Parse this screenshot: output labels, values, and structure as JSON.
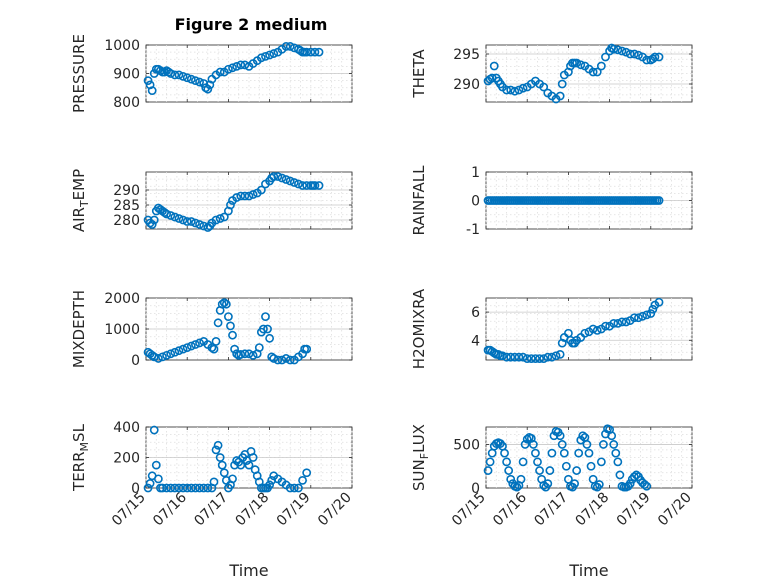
{
  "figure": {
    "title": "Figure 2 medium"
  },
  "colors": {
    "marker": "#0072BD",
    "axes": "#262626"
  },
  "chart_data": [
    {
      "id": "pressure",
      "type": "scatter",
      "title": "Figure 2 medium",
      "ylabel": "PRESSURE",
      "ylabel_sub": null,
      "xlabel": "",
      "xlim": [
        0,
        5
      ],
      "ylim": [
        800,
        1000
      ],
      "yticks": [
        800,
        900,
        1000
      ],
      "yticklabels": [
        "800",
        "900",
        "1000"
      ],
      "xticks": [
        0,
        1,
        2,
        3,
        4,
        5
      ],
      "xticklabels": [],
      "x": [
        0.05,
        0.1,
        0.15,
        0.2,
        0.25,
        0.3,
        0.35,
        0.4,
        0.45,
        0.5,
        0.55,
        0.6,
        0.7,
        0.8,
        0.9,
        1.0,
        1.1,
        1.2,
        1.3,
        1.4,
        1.45,
        1.5,
        1.55,
        1.6,
        1.7,
        1.8,
        1.9,
        2.0,
        2.1,
        2.2,
        2.3,
        2.4,
        2.5,
        2.6,
        2.7,
        2.8,
        2.9,
        3.0,
        3.1,
        3.2,
        3.3,
        3.4,
        3.5,
        3.6,
        3.7,
        3.75,
        3.8,
        3.85,
        3.9,
        4.0,
        4.1,
        4.2
      ],
      "y": [
        875,
        860,
        840,
        900,
        915,
        915,
        910,
        905,
        905,
        910,
        905,
        900,
        895,
        895,
        890,
        885,
        880,
        875,
        870,
        865,
        850,
        845,
        860,
        880,
        895,
        905,
        905,
        915,
        920,
        925,
        930,
        930,
        925,
        935,
        945,
        955,
        960,
        965,
        970,
        975,
        985,
        995,
        995,
        990,
        985,
        980,
        975,
        975,
        975,
        975,
        975,
        975
      ]
    },
    {
      "id": "theta",
      "type": "scatter",
      "ylabel": "THETA",
      "ylabel_sub": null,
      "xlabel": "",
      "xlim": [
        0,
        5
      ],
      "ylim": [
        287,
        296.5
      ],
      "yticks": [
        290,
        295
      ],
      "yticklabels": [
        "290",
        "295"
      ],
      "xticks": [
        0,
        1,
        2,
        3,
        4,
        5
      ],
      "xticklabels": [],
      "x": [
        0.05,
        0.1,
        0.15,
        0.2,
        0.25,
        0.3,
        0.35,
        0.4,
        0.5,
        0.6,
        0.7,
        0.8,
        0.9,
        1.0,
        1.1,
        1.2,
        1.3,
        1.4,
        1.5,
        1.6,
        1.7,
        1.8,
        1.85,
        1.9,
        2.0,
        2.05,
        2.1,
        2.15,
        2.2,
        2.3,
        2.4,
        2.5,
        2.6,
        2.7,
        2.8,
        2.9,
        3.0,
        3.05,
        3.1,
        3.2,
        3.3,
        3.4,
        3.5,
        3.6,
        3.7,
        3.8,
        3.9,
        4.0,
        4.05,
        4.1,
        4.2
      ],
      "y": [
        290.5,
        290.8,
        291,
        293,
        291,
        290.5,
        290,
        289.5,
        289,
        289,
        288.8,
        289,
        289.3,
        289.5,
        290,
        290.5,
        290,
        289.5,
        288.5,
        288,
        287.5,
        288,
        290,
        291.5,
        292,
        293,
        293.5,
        293.5,
        293.5,
        293.2,
        293,
        292.5,
        292,
        292,
        293,
        294.5,
        295.5,
        296,
        295.8,
        295.7,
        295.5,
        295.3,
        295,
        295,
        294.8,
        294.5,
        294,
        294,
        294.2,
        294.5,
        294.5
      ]
    },
    {
      "id": "air_temp",
      "type": "scatter",
      "ylabel": "AIR",
      "ylabel_sub": "T",
      "ylabel_suffix": "EMP",
      "xlabel": "",
      "xlim": [
        0,
        5
      ],
      "ylim": [
        277,
        296
      ],
      "yticks": [
        280,
        285,
        290
      ],
      "yticklabels": [
        "280",
        "285",
        "290"
      ],
      "xticks": [
        0,
        1,
        2,
        3,
        4,
        5
      ],
      "xticklabels": [],
      "x": [
        0.05,
        0.1,
        0.15,
        0.2,
        0.25,
        0.3,
        0.35,
        0.4,
        0.45,
        0.5,
        0.6,
        0.7,
        0.8,
        0.9,
        1.0,
        1.1,
        1.2,
        1.3,
        1.4,
        1.5,
        1.55,
        1.6,
        1.7,
        1.8,
        1.9,
        2.0,
        2.05,
        2.1,
        2.2,
        2.3,
        2.4,
        2.5,
        2.6,
        2.7,
        2.8,
        2.9,
        3.0,
        3.05,
        3.1,
        3.2,
        3.3,
        3.4,
        3.5,
        3.6,
        3.7,
        3.8,
        3.9,
        4.0,
        4.05,
        4.1,
        4.2
      ],
      "y": [
        280,
        279,
        278.5,
        280,
        283,
        284,
        283.5,
        283,
        282.5,
        282,
        281.5,
        281,
        280.5,
        280,
        279.5,
        279.5,
        279,
        278.5,
        278,
        277.5,
        278,
        279,
        280,
        280.5,
        281,
        283,
        285,
        286.5,
        287.5,
        288,
        288,
        288,
        288.5,
        289,
        290,
        292,
        293,
        294,
        294.5,
        294.5,
        294,
        293.5,
        293,
        292.5,
        292,
        291.5,
        291.5,
        291.5,
        291.5,
        291.5,
        291.5
      ]
    },
    {
      "id": "rainfall",
      "type": "scatter",
      "ylabel": "RAINFALL",
      "ylabel_sub": null,
      "xlabel": "",
      "xlim": [
        0,
        5
      ],
      "ylim": [
        -1,
        1
      ],
      "yticks": [
        -1,
        0,
        1
      ],
      "yticklabels": [
        "-1",
        "0",
        "1"
      ],
      "xticks": [
        0,
        1,
        2,
        3,
        4,
        5
      ],
      "xticklabels": [],
      "x": [
        0.05,
        0.1,
        0.15,
        0.2,
        0.25,
        0.3,
        0.35,
        0.4,
        0.45,
        0.5,
        0.55,
        0.6,
        0.65,
        0.7,
        0.75,
        0.8,
        0.85,
        0.9,
        0.95,
        1.0,
        1.05,
        1.1,
        1.15,
        1.2,
        1.25,
        1.3,
        1.35,
        1.4,
        1.45,
        1.5,
        1.55,
        1.6,
        1.65,
        1.7,
        1.75,
        1.8,
        1.85,
        1.9,
        1.95,
        2.0,
        2.05,
        2.1,
        2.15,
        2.2,
        2.25,
        2.3,
        2.35,
        2.4,
        2.45,
        2.5,
        2.55,
        2.6,
        2.65,
        2.7,
        2.75,
        2.8,
        2.85,
        2.9,
        2.95,
        3.0,
        3.05,
        3.1,
        3.15,
        3.2,
        3.25,
        3.3,
        3.35,
        3.4,
        3.45,
        3.5,
        3.55,
        3.6,
        3.65,
        3.7,
        3.75,
        3.8,
        3.85,
        3.9,
        3.95,
        4.0,
        4.05,
        4.1,
        4.15,
        4.2
      ],
      "y": [
        0,
        0,
        0,
        0,
        0,
        0,
        0,
        0,
        0,
        0,
        0,
        0,
        0,
        0,
        0,
        0,
        0,
        0,
        0,
        0,
        0,
        0,
        0,
        0,
        0,
        0,
        0,
        0,
        0,
        0,
        0,
        0,
        0,
        0,
        0,
        0,
        0,
        0,
        0,
        0,
        0,
        0,
        0,
        0,
        0,
        0,
        0,
        0,
        0,
        0,
        0,
        0,
        0,
        0,
        0,
        0,
        0,
        0,
        0,
        0,
        0,
        0,
        0,
        0,
        0,
        0,
        0,
        0,
        0,
        0,
        0,
        0,
        0,
        0,
        0,
        0,
        0,
        0,
        0,
        0,
        0,
        0,
        0,
        0
      ]
    },
    {
      "id": "mixdepth",
      "type": "scatter",
      "ylabel": "MIXDEPTH",
      "ylabel_sub": null,
      "xlabel": "",
      "xlim": [
        0,
        5
      ],
      "ylim": [
        0,
        2000
      ],
      "yticks": [
        0,
        1000,
        2000
      ],
      "yticklabels": [
        "0",
        "1000",
        "2000"
      ],
      "xticks": [
        0,
        1,
        2,
        3,
        4,
        5
      ],
      "xticklabels": [],
      "x": [
        0.05,
        0.1,
        0.15,
        0.2,
        0.3,
        0.4,
        0.5,
        0.6,
        0.7,
        0.8,
        0.9,
        1.0,
        1.1,
        1.2,
        1.3,
        1.4,
        1.5,
        1.6,
        1.65,
        1.7,
        1.75,
        1.8,
        1.85,
        1.9,
        1.95,
        2.0,
        2.05,
        2.1,
        2.15,
        2.2,
        2.25,
        2.3,
        2.4,
        2.5,
        2.6,
        2.7,
        2.75,
        2.8,
        2.85,
        2.9,
        2.95,
        3.0,
        3.05,
        3.1,
        3.2,
        3.3,
        3.4,
        3.5,
        3.6,
        3.7,
        3.8,
        3.85,
        3.9
      ],
      "y": [
        250,
        200,
        150,
        100,
        50,
        100,
        150,
        200,
        250,
        300,
        350,
        400,
        450,
        500,
        550,
        600,
        500,
        400,
        350,
        600,
        1200,
        1600,
        1800,
        1850,
        1800,
        1400,
        1100,
        800,
        350,
        200,
        150,
        180,
        200,
        200,
        150,
        200,
        400,
        900,
        1000,
        1400,
        1000,
        700,
        100,
        50,
        0,
        0,
        50,
        0,
        0,
        100,
        200,
        350,
        350
      ]
    },
    {
      "id": "h2omixra",
      "type": "scatter",
      "ylabel": "H2OMIXRA",
      "ylabel_sub": null,
      "xlabel": "",
      "xlim": [
        0,
        5
      ],
      "ylim": [
        2.6,
        7
      ],
      "yticks": [
        4,
        6
      ],
      "yticklabels": [
        "4",
        "6"
      ],
      "xticks": [
        0,
        1,
        2,
        3,
        4,
        5
      ],
      "xticklabels": [],
      "x": [
        0.05,
        0.1,
        0.15,
        0.2,
        0.25,
        0.3,
        0.35,
        0.4,
        0.5,
        0.6,
        0.7,
        0.8,
        0.9,
        1.0,
        1.1,
        1.2,
        1.3,
        1.4,
        1.5,
        1.6,
        1.7,
        1.8,
        1.85,
        1.9,
        2.0,
        2.05,
        2.1,
        2.15,
        2.2,
        2.3,
        2.4,
        2.5,
        2.6,
        2.7,
        2.8,
        2.9,
        3.0,
        3.1,
        3.2,
        3.3,
        3.4,
        3.5,
        3.6,
        3.7,
        3.8,
        3.9,
        4.0,
        4.05,
        4.1,
        4.2
      ],
      "y": [
        3.3,
        3.3,
        3.2,
        3.1,
        3.0,
        3.0,
        2.9,
        2.9,
        2.8,
        2.8,
        2.8,
        2.8,
        2.8,
        2.7,
        2.7,
        2.7,
        2.7,
        2.7,
        2.8,
        2.8,
        2.9,
        3.0,
        3.8,
        4.2,
        4.5,
        4.0,
        3.8,
        3.8,
        4.0,
        4.2,
        4.5,
        4.6,
        4.8,
        4.7,
        4.8,
        5.0,
        5.0,
        5.2,
        5.2,
        5.3,
        5.3,
        5.4,
        5.6,
        5.6,
        5.7,
        5.8,
        5.9,
        6.2,
        6.5,
        6.7
      ]
    },
    {
      "id": "terr_msl",
      "type": "scatter",
      "ylabel": "TERR",
      "ylabel_sub": "M",
      "ylabel_suffix": "SL",
      "xlabel": "Time",
      "xlim": [
        0,
        5
      ],
      "ylim": [
        0,
        400
      ],
      "yticks": [
        0,
        200,
        400
      ],
      "yticklabels": [
        "0",
        "200",
        "400"
      ],
      "xticks": [
        0,
        1,
        2,
        3,
        4,
        5
      ],
      "xticklabels": [
        "07/15",
        "07/16",
        "07/17",
        "07/18",
        "07/19",
        "07/20"
      ],
      "x": [
        0.05,
        0.1,
        0.15,
        0.2,
        0.25,
        0.3,
        0.35,
        0.4,
        0.5,
        0.6,
        0.7,
        0.8,
        0.9,
        1.0,
        1.1,
        1.2,
        1.3,
        1.4,
        1.5,
        1.6,
        1.65,
        1.7,
        1.75,
        1.8,
        1.85,
        1.9,
        1.95,
        2.0,
        2.05,
        2.1,
        2.15,
        2.2,
        2.25,
        2.3,
        2.35,
        2.4,
        2.45,
        2.5,
        2.55,
        2.6,
        2.65,
        2.7,
        2.75,
        2.8,
        2.85,
        2.9,
        2.95,
        3.0,
        3.05,
        3.1,
        3.2,
        3.3,
        3.4,
        3.5,
        3.6,
        3.7,
        3.8,
        3.9
      ],
      "y": [
        0,
        30,
        80,
        380,
        150,
        60,
        0,
        0,
        0,
        0,
        0,
        0,
        0,
        0,
        0,
        0,
        0,
        0,
        0,
        0,
        40,
        250,
        280,
        200,
        150,
        100,
        50,
        0,
        20,
        60,
        150,
        180,
        170,
        150,
        200,
        220,
        180,
        150,
        240,
        200,
        120,
        80,
        40,
        0,
        0,
        0,
        0,
        20,
        50,
        80,
        60,
        40,
        20,
        0,
        0,
        0,
        50,
        100
      ]
    },
    {
      "id": "sun_flux",
      "type": "scatter",
      "ylabel": "SUN",
      "ylabel_sub": "F",
      "ylabel_suffix": "LUX",
      "xlabel": "Time",
      "xlim": [
        0,
        5
      ],
      "ylim": [
        0,
        700
      ],
      "yticks": [
        0,
        500
      ],
      "yticklabels": [
        "0",
        "500"
      ],
      "xticks": [
        0,
        1,
        2,
        3,
        4,
        5
      ],
      "xticklabels": [
        "07/15",
        "07/16",
        "07/17",
        "07/18",
        "07/19",
        "07/20"
      ],
      "x": [
        0.05,
        0.1,
        0.15,
        0.2,
        0.25,
        0.3,
        0.35,
        0.4,
        0.45,
        0.5,
        0.55,
        0.6,
        0.65,
        0.7,
        0.75,
        0.8,
        0.85,
        0.9,
        0.95,
        1.0,
        1.05,
        1.1,
        1.15,
        1.2,
        1.25,
        1.3,
        1.35,
        1.4,
        1.45,
        1.5,
        1.55,
        1.6,
        1.65,
        1.7,
        1.75,
        1.8,
        1.85,
        1.9,
        1.95,
        2.0,
        2.05,
        2.1,
        2.15,
        2.2,
        2.25,
        2.3,
        2.35,
        2.4,
        2.45,
        2.5,
        2.55,
        2.6,
        2.65,
        2.7,
        2.75,
        2.8,
        2.85,
        2.9,
        2.95,
        3.0,
        3.05,
        3.1,
        3.15,
        3.2,
        3.25,
        3.3,
        3.35,
        3.4,
        3.45,
        3.5,
        3.55,
        3.6,
        3.65,
        3.7,
        3.75,
        3.8,
        3.85,
        3.9
      ],
      "y": [
        200,
        300,
        400,
        480,
        510,
        520,
        510,
        480,
        400,
        300,
        200,
        100,
        50,
        20,
        10,
        30,
        100,
        300,
        500,
        560,
        580,
        570,
        500,
        400,
        300,
        200,
        100,
        30,
        10,
        50,
        200,
        400,
        600,
        650,
        640,
        600,
        500,
        400,
        250,
        100,
        20,
        10,
        50,
        200,
        400,
        550,
        600,
        580,
        500,
        400,
        250,
        100,
        20,
        10,
        40,
        300,
        500,
        620,
        680,
        670,
        600,
        500,
        400,
        300,
        150,
        20,
        10,
        10,
        20,
        50,
        100,
        130,
        150,
        130,
        90,
        60,
        40,
        20
      ]
    }
  ]
}
